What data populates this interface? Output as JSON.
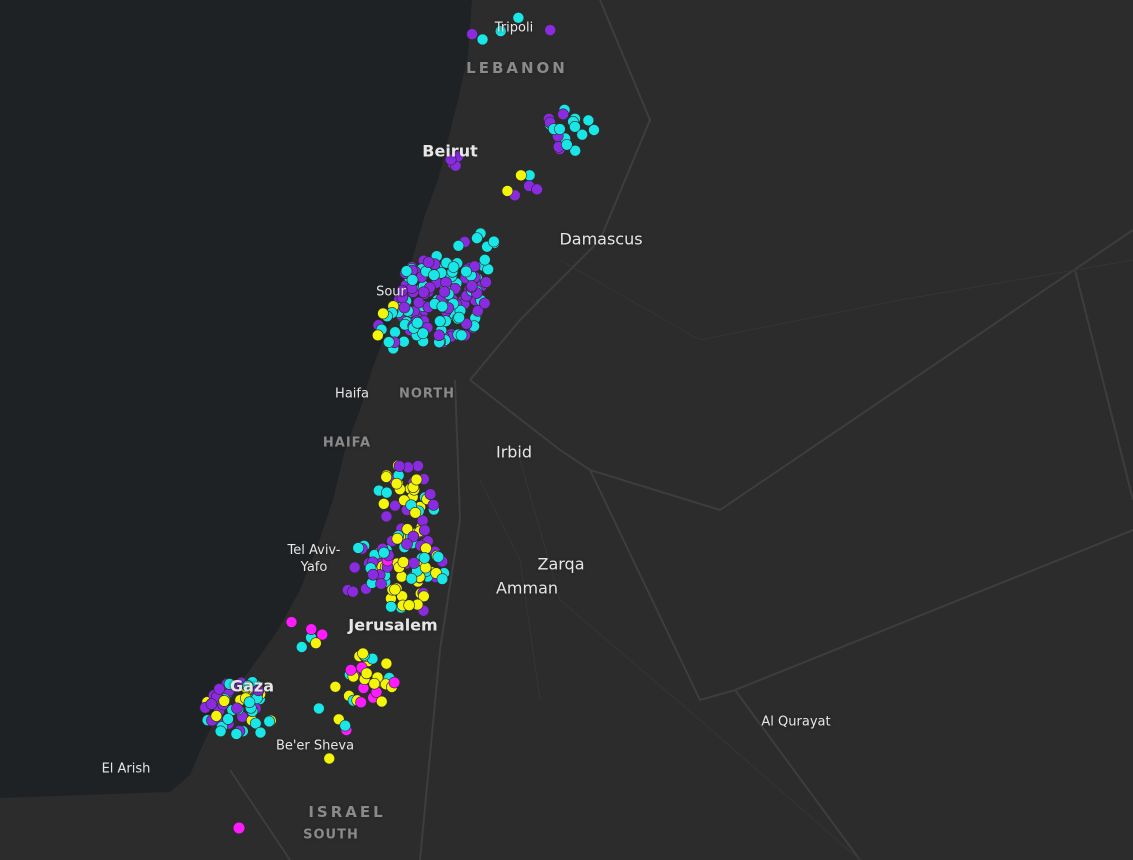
{
  "places": [
    {
      "name": "Tripoli"
    },
    {
      "name": "LEBANON"
    },
    {
      "name": "Beirut"
    },
    {
      "name": "Damascus"
    },
    {
      "name": "Sour"
    },
    {
      "name": "Haifa"
    },
    {
      "name": "NORTH"
    },
    {
      "name": "HAIFA"
    },
    {
      "name": "Irbid"
    },
    {
      "name": "Tel Aviv-Yafo"
    },
    {
      "name": "Zarqa"
    },
    {
      "name": "Amman"
    },
    {
      "name": "Jerusalem"
    },
    {
      "name": "Gaza"
    },
    {
      "name": "Be'er Sheva"
    },
    {
      "name": "El Arish"
    },
    {
      "name": "Al Qurayat"
    },
    {
      "name": "ISRAEL"
    },
    {
      "name": "SOUTH"
    }
  ]
}
